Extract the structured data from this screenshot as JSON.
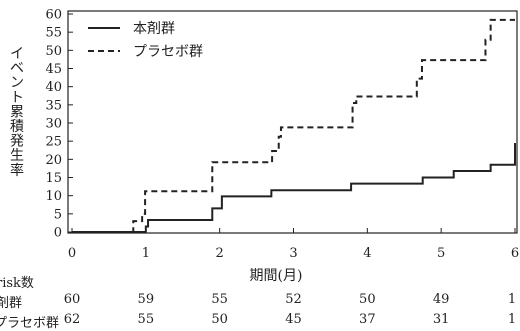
{
  "chart_data": {
    "type": "line",
    "step": true,
    "ylabel": "イベント累積発生率",
    "xlabel": "期間(月)",
    "xlim": [
      0,
      6
    ],
    "ylim": [
      0,
      60
    ],
    "xticks": [
      "0",
      "1",
      "2",
      "3",
      "4",
      "5",
      "6"
    ],
    "yticks": [
      "0",
      "5",
      "10",
      "15",
      "20",
      "25",
      "30",
      "35",
      "40",
      "45",
      "50",
      "55",
      "60"
    ],
    "grid": false,
    "legend_position": "top-left",
    "series": [
      {
        "name": "本剤群",
        "style": "solid",
        "color": "#222222",
        "x": [
          0,
          0.97,
          1.0,
          1.03,
          1.87,
          1.9,
          2.03,
          2.7,
          3.73,
          3.78,
          4.75,
          5.17,
          5.67,
          6.0
        ],
        "y": [
          0,
          0,
          1.5,
          3.3,
          3.3,
          6.5,
          9.8,
          11.5,
          11.5,
          13.3,
          15.0,
          16.8,
          18.5,
          24.5
        ]
      },
      {
        "name": "プラセボ群",
        "style": "dashed",
        "color": "#222222",
        "x": [
          0,
          0.73,
          0.83,
          0.95,
          0.99,
          1.83,
          1.9,
          2.65,
          2.71,
          2.8,
          2.83,
          3.65,
          3.8,
          3.85,
          4.57,
          4.67,
          4.74,
          5.2,
          5.6,
          5.67,
          6.0
        ],
        "y": [
          0,
          0,
          3,
          5,
          11.2,
          11.2,
          19.2,
          19.2,
          22.3,
          26.2,
          28.8,
          28.8,
          35.5,
          37.3,
          37.3,
          42.2,
          47.3,
          47.3,
          52.9,
          58.4,
          58.4
        ]
      }
    ]
  },
  "risk_table": {
    "header": "risk数",
    "rows": [
      {
        "label": "剤群",
        "values": [
          "60",
          "59",
          "55",
          "52",
          "50",
          "49",
          "1"
        ]
      },
      {
        "label": "プラセボ群",
        "values": [
          "62",
          "55",
          "50",
          "45",
          "37",
          "31",
          "1"
        ]
      }
    ]
  }
}
